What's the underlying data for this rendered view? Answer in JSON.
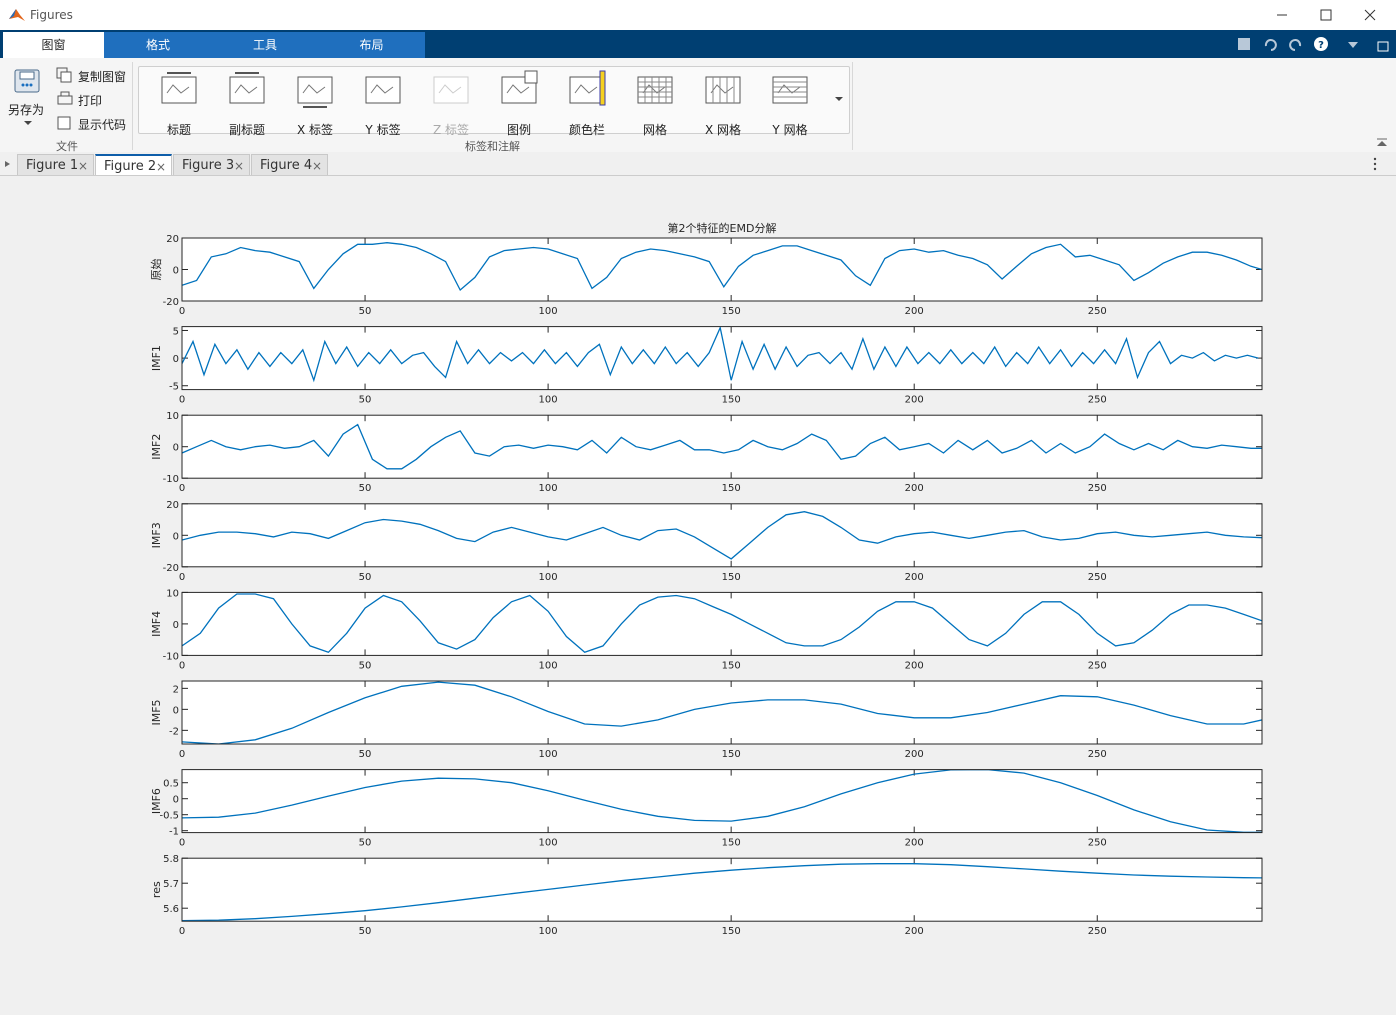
{
  "window": {
    "title": "Figures"
  },
  "ribbon": {
    "tabs": [
      "图窗",
      "格式",
      "工具",
      "布局"
    ],
    "file_group": {
      "save_as": "另存为",
      "copy": "复制图窗",
      "print": "打印",
      "show_code": "显示代码",
      "label": "文件"
    },
    "annotation_group": {
      "buttons": [
        "标题",
        "副标题",
        "X 标签",
        "Y 标签",
        "Z 标签",
        "图例",
        "颜色栏",
        "网格",
        "X 网格",
        "Y 网格"
      ],
      "label": "标签和注解"
    }
  },
  "figure_tabs": [
    "Figure 1",
    "Figure 2",
    "Figure 3",
    "Figure 4"
  ],
  "chart_data": [
    {
      "type": "line",
      "title": "第2个特征的EMD分解",
      "ylabel": "原始",
      "color": "#0072bd",
      "xlim": [
        0,
        295
      ],
      "xticks": [
        0,
        50,
        100,
        150,
        200,
        250
      ],
      "ylim": [
        -20,
        20
      ],
      "yticks": [
        -20,
        0,
        20
      ],
      "x": [
        0,
        4,
        8,
        12,
        16,
        20,
        24,
        28,
        32,
        36,
        40,
        44,
        48,
        52,
        56,
        60,
        64,
        68,
        72,
        76,
        80,
        84,
        88,
        92,
        96,
        100,
        104,
        108,
        112,
        116,
        120,
        124,
        128,
        132,
        136,
        140,
        144,
        148,
        152,
        156,
        160,
        164,
        168,
        172,
        176,
        180,
        184,
        188,
        192,
        196,
        200,
        204,
        208,
        212,
        216,
        220,
        224,
        228,
        232,
        236,
        240,
        244,
        248,
        252,
        256,
        260,
        264,
        268,
        272,
        276,
        280,
        284,
        288,
        292,
        295
      ],
      "values": [
        -10,
        -7,
        8,
        10,
        14,
        12,
        11,
        8,
        5,
        -12,
        0,
        10,
        16,
        16,
        17,
        16,
        14,
        10,
        5,
        -13,
        -5,
        8,
        12,
        13,
        14,
        13,
        10,
        7,
        -12,
        -5,
        7,
        11,
        13,
        12,
        10,
        8,
        5,
        -11,
        2,
        9,
        12,
        15,
        15,
        12,
        9,
        6,
        -4,
        -10,
        7,
        12,
        13,
        11,
        12,
        9,
        7,
        3,
        -6,
        2,
        10,
        14,
        16,
        8,
        9,
        6,
        3,
        -7,
        -2,
        4,
        8,
        11,
        11,
        9,
        6,
        2,
        0
      ]
    },
    {
      "type": "line",
      "ylabel": "IMF1",
      "color": "#0072bd",
      "xlim": [
        0,
        295
      ],
      "xticks": [
        0,
        50,
        100,
        150,
        200,
        250
      ],
      "ylim": [
        -5.7,
        5.7
      ],
      "yticks": [
        -5,
        0,
        5
      ],
      "x": [
        0,
        3,
        6,
        9,
        12,
        15,
        18,
        21,
        24,
        27,
        30,
        33,
        36,
        39,
        42,
        45,
        48,
        51,
        54,
        57,
        60,
        63,
        66,
        69,
        72,
        75,
        78,
        81,
        84,
        87,
        90,
        93,
        96,
        99,
        102,
        105,
        108,
        111,
        114,
        117,
        120,
        123,
        126,
        129,
        132,
        135,
        138,
        141,
        144,
        147,
        150,
        153,
        156,
        159,
        162,
        165,
        168,
        171,
        174,
        177,
        180,
        183,
        186,
        189,
        192,
        195,
        198,
        201,
        204,
        207,
        210,
        213,
        216,
        219,
        222,
        225,
        228,
        231,
        234,
        237,
        240,
        243,
        246,
        249,
        252,
        255,
        258,
        261,
        264,
        267,
        270,
        273,
        276,
        279,
        282,
        285,
        288,
        291,
        294
      ],
      "values": [
        -1,
        3,
        -3,
        2.5,
        -1,
        1.5,
        -2,
        1,
        -1.5,
        1,
        -1,
        1.5,
        -4,
        3,
        -1,
        2,
        -1.5,
        1,
        -1,
        1.5,
        -1,
        0.5,
        1,
        -1.5,
        -3.5,
        3,
        -1,
        1.5,
        -1,
        1,
        -0.5,
        1,
        -1,
        1.5,
        -1,
        1,
        -1.5,
        1,
        2.5,
        -3,
        2,
        -1,
        1.5,
        -1,
        2,
        -1,
        1,
        -1.5,
        1,
        5.5,
        -4,
        3,
        -2,
        2.5,
        -2,
        2,
        -1.5,
        0.5,
        1,
        -1,
        1,
        -2,
        3.5,
        -2,
        2,
        -1.5,
        2,
        -1,
        1,
        -1,
        1.5,
        -1,
        1,
        -1,
        2,
        -1.5,
        1,
        -1,
        2,
        -1,
        1.5,
        -1.5,
        1,
        -1,
        1.5,
        -1,
        3.5,
        -3.5,
        1,
        3,
        -1,
        0.5,
        0,
        1,
        -0.5,
        0.5,
        0,
        0.5,
        0
      ]
    },
    {
      "type": "line",
      "ylabel": "IMF2",
      "color": "#0072bd",
      "xlim": [
        0,
        295
      ],
      "xticks": [
        0,
        50,
        100,
        150,
        200,
        250
      ],
      "ylim": [
        -10,
        10
      ],
      "yticks": [
        -10,
        0,
        10
      ],
      "x": [
        0,
        4,
        8,
        12,
        16,
        20,
        24,
        28,
        32,
        36,
        40,
        44,
        48,
        52,
        56,
        60,
        64,
        68,
        72,
        76,
        80,
        84,
        88,
        92,
        96,
        100,
        104,
        108,
        112,
        116,
        120,
        124,
        128,
        132,
        136,
        140,
        144,
        148,
        152,
        156,
        160,
        164,
        168,
        172,
        176,
        180,
        184,
        188,
        192,
        196,
        200,
        204,
        208,
        212,
        216,
        220,
        224,
        228,
        232,
        236,
        240,
        244,
        248,
        252,
        256,
        260,
        264,
        268,
        272,
        276,
        280,
        284,
        288,
        292,
        295
      ],
      "values": [
        -2,
        0,
        2,
        0,
        -1,
        0,
        0.5,
        -0.5,
        0,
        2,
        -3,
        4,
        7,
        -4,
        -7,
        -7,
        -4,
        0,
        3,
        5,
        -2,
        -3,
        0,
        0.5,
        -0.5,
        0.5,
        0,
        -1,
        2,
        -2,
        3,
        0,
        -1,
        0.5,
        2,
        -1,
        -1,
        -2,
        -1,
        2,
        0,
        -1,
        1,
        4,
        2,
        -4,
        -3,
        1,
        3,
        -1,
        0,
        1,
        -2,
        2,
        -1,
        2,
        -2,
        -0.5,
        2,
        -2,
        1,
        -2,
        0,
        4,
        1,
        -1,
        1,
        -1,
        2,
        0,
        -0.5,
        0.5,
        0,
        -0.5,
        -0.5
      ]
    },
    {
      "type": "line",
      "ylabel": "IMF3",
      "color": "#0072bd",
      "xlim": [
        0,
        295
      ],
      "xticks": [
        0,
        50,
        100,
        150,
        200,
        250
      ],
      "ylim": [
        -20,
        20
      ],
      "yticks": [
        -20,
        0,
        20
      ],
      "x": [
        0,
        5,
        10,
        15,
        20,
        25,
        30,
        35,
        40,
        45,
        50,
        55,
        60,
        65,
        70,
        75,
        80,
        85,
        90,
        95,
        100,
        105,
        110,
        115,
        120,
        125,
        130,
        135,
        140,
        145,
        150,
        155,
        160,
        165,
        170,
        175,
        180,
        185,
        190,
        195,
        200,
        205,
        210,
        215,
        220,
        225,
        230,
        235,
        240,
        245,
        250,
        255,
        260,
        265,
        270,
        275,
        280,
        285,
        290,
        295
      ],
      "values": [
        -3,
        0,
        2,
        2,
        1,
        -1,
        2,
        1,
        -2,
        3,
        8,
        10,
        9,
        7,
        3,
        -2,
        -4,
        2,
        5,
        2,
        -1,
        -3,
        1,
        5,
        0,
        -3,
        3,
        4,
        -1,
        -8,
        -15,
        -5,
        5,
        13,
        15,
        12,
        5,
        -3,
        -5,
        -1,
        1,
        2,
        0,
        -2,
        0,
        2,
        3,
        -1,
        -3,
        -2,
        1,
        2,
        0,
        -1,
        0,
        1,
        2,
        0,
        -1,
        -1.5
      ]
    },
    {
      "type": "line",
      "ylabel": "IMF4",
      "color": "#0072bd",
      "xlim": [
        0,
        295
      ],
      "xticks": [
        0,
        50,
        100,
        150,
        200,
        250
      ],
      "ylim": [
        -10,
        10
      ],
      "yticks": [
        -10,
        0,
        10
      ],
      "x": [
        0,
        5,
        10,
        15,
        20,
        25,
        30,
        35,
        40,
        45,
        50,
        55,
        60,
        65,
        70,
        75,
        80,
        85,
        90,
        95,
        100,
        105,
        110,
        115,
        120,
        125,
        130,
        135,
        140,
        145,
        150,
        155,
        160,
        165,
        170,
        175,
        180,
        185,
        190,
        195,
        200,
        205,
        210,
        215,
        220,
        225,
        230,
        235,
        240,
        245,
        250,
        255,
        260,
        265,
        270,
        275,
        280,
        285,
        290,
        295
      ],
      "values": [
        -7,
        -3,
        5,
        9.5,
        9.5,
        8,
        0,
        -7,
        -9,
        -3,
        5,
        9,
        7,
        1,
        -6,
        -8,
        -5,
        2,
        7,
        9,
        4,
        -4,
        -9,
        -7,
        0,
        6,
        8.5,
        9,
        8,
        5.5,
        3,
        0,
        -3,
        -6,
        -7,
        -7,
        -5,
        -1,
        4,
        7,
        7,
        5,
        0,
        -5,
        -7,
        -3,
        3,
        7,
        7,
        3,
        -3,
        -7,
        -6,
        -2,
        3,
        6,
        6,
        5,
        3,
        1
      ]
    },
    {
      "type": "line",
      "ylabel": "IMF5",
      "color": "#0072bd",
      "xlim": [
        0,
        295
      ],
      "xticks": [
        0,
        50,
        100,
        150,
        200,
        250
      ],
      "ylim": [
        -3.3,
        2.7
      ],
      "yticks": [
        -2,
        0,
        2
      ],
      "x": [
        0,
        10,
        20,
        30,
        40,
        50,
        60,
        70,
        80,
        90,
        100,
        110,
        120,
        130,
        140,
        150,
        160,
        170,
        180,
        190,
        200,
        210,
        220,
        230,
        240,
        250,
        260,
        270,
        280,
        290,
        295
      ],
      "values": [
        -3.1,
        -3.3,
        -2.9,
        -1.8,
        -0.3,
        1.1,
        2.2,
        2.6,
        2.3,
        1.2,
        -0.2,
        -1.4,
        -1.6,
        -1,
        0,
        0.6,
        0.9,
        0.9,
        0.5,
        -0.4,
        -0.8,
        -0.8,
        -0.3,
        0.5,
        1.3,
        1.2,
        0.4,
        -0.6,
        -1.4,
        -1.4,
        -1
      ]
    },
    {
      "type": "line",
      "ylabel": "IMF6",
      "color": "#0072bd",
      "xlim": [
        0,
        295
      ],
      "xticks": [
        0,
        50,
        100,
        150,
        200,
        250
      ],
      "ylim": [
        -1.06,
        0.91
      ],
      "yticks": [
        -1,
        -0.5,
        0,
        0.5
      ],
      "x": [
        0,
        10,
        20,
        30,
        40,
        50,
        60,
        70,
        80,
        90,
        100,
        110,
        120,
        130,
        140,
        150,
        160,
        170,
        180,
        190,
        200,
        210,
        220,
        230,
        240,
        250,
        260,
        270,
        280,
        290,
        295
      ],
      "values": [
        -0.6,
        -0.58,
        -0.45,
        -0.2,
        0.08,
        0.35,
        0.55,
        0.64,
        0.62,
        0.5,
        0.25,
        -0.05,
        -0.33,
        -0.55,
        -0.68,
        -0.7,
        -0.55,
        -0.25,
        0.15,
        0.5,
        0.77,
        0.9,
        0.91,
        0.8,
        0.5,
        0.1,
        -0.35,
        -0.72,
        -0.98,
        -1.05,
        -1.05
      ]
    },
    {
      "type": "line",
      "ylabel": "res",
      "color": "#0072bd",
      "xlim": [
        0,
        295
      ],
      "xticks": [
        0,
        50,
        100,
        150,
        200,
        250
      ],
      "ylim": [
        5.548,
        5.8
      ],
      "yticks": [
        5.6,
        5.7,
        5.8
      ],
      "x": [
        0,
        10,
        20,
        30,
        40,
        50,
        60,
        70,
        80,
        90,
        100,
        110,
        120,
        130,
        140,
        150,
        160,
        170,
        180,
        190,
        200,
        210,
        220,
        230,
        240,
        250,
        260,
        270,
        280,
        290,
        295
      ],
      "values": [
        5.55,
        5.552,
        5.558,
        5.567,
        5.578,
        5.59,
        5.605,
        5.622,
        5.64,
        5.658,
        5.675,
        5.693,
        5.71,
        5.725,
        5.74,
        5.752,
        5.762,
        5.77,
        5.776,
        5.778,
        5.778,
        5.774,
        5.766,
        5.757,
        5.748,
        5.74,
        5.733,
        5.728,
        5.725,
        5.722,
        5.721
      ]
    }
  ]
}
